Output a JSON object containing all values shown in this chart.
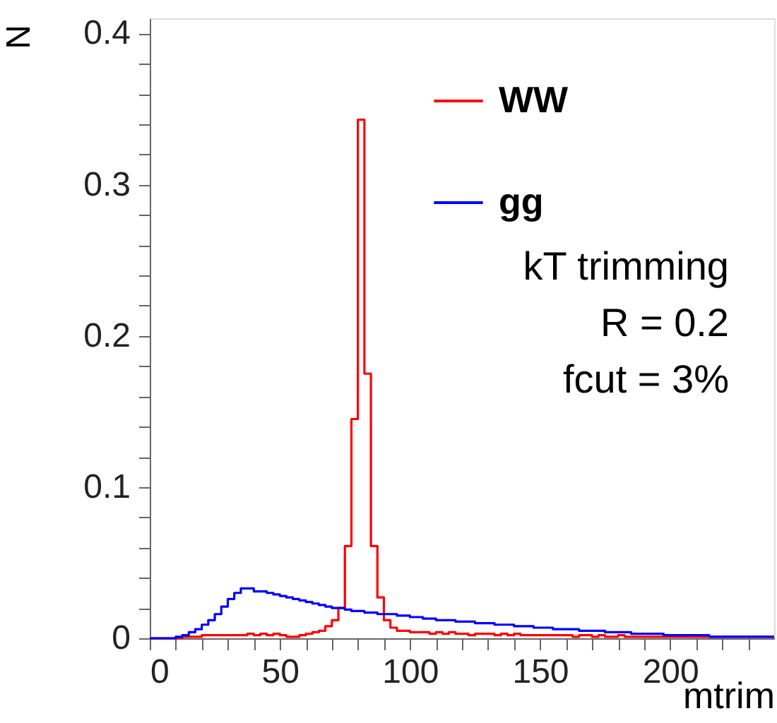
{
  "chart_data": {
    "type": "histogram",
    "xlabel": "mtrim",
    "ylabel": "N",
    "bins": [
      0,
      2.5,
      5,
      7.5,
      10,
      12.5,
      15,
      17.5,
      20,
      22.5,
      25,
      27.5,
      30,
      32.5,
      35,
      37.5,
      40,
      42.5,
      45,
      47.5,
      50,
      52.5,
      55,
      57.5,
      60,
      62.5,
      65,
      67.5,
      70,
      72.5,
      75,
      77.5,
      80,
      82.5,
      85,
      87.5,
      90,
      92.5,
      95,
      97.5,
      100,
      102.5,
      105,
      107.5,
      110,
      112.5,
      115,
      117.5,
      120,
      122.5,
      125,
      127.5,
      130,
      132.5,
      135,
      137.5,
      140,
      142.5,
      145,
      147.5,
      150,
      152.5,
      155,
      157.5,
      160,
      162.5,
      165,
      167.5,
      170,
      172.5,
      175,
      177.5,
      180,
      182.5,
      185,
      187.5,
      190,
      192.5,
      195,
      197.5,
      200,
      202.5,
      205,
      207.5,
      210,
      212.5,
      215,
      217.5,
      220,
      222.5,
      225,
      227.5,
      230,
      232.5,
      235,
      237.5,
      240
    ],
    "series": [
      {
        "name": "WW",
        "color": "#ff0000",
        "values": [
          0,
          0,
          0,
          0,
          0,
          0.001,
          0.001,
          0.001,
          0.002,
          0.002,
          0.002,
          0.002,
          0.002,
          0.002,
          0.002,
          0.003,
          0.002,
          0.003,
          0.002,
          0.003,
          0.002,
          0.001,
          0.001,
          0.002,
          0.003,
          0.004,
          0.005,
          0.008,
          0.012,
          0.02,
          0.061,
          0.145,
          0.343,
          0.175,
          0.061,
          0.027,
          0.012,
          0.007,
          0.005,
          0.005,
          0.004,
          0.004,
          0.004,
          0.003,
          0.004,
          0.003,
          0.004,
          0.003,
          0.003,
          0.002,
          0.003,
          0.003,
          0.003,
          0.002,
          0.003,
          0.002,
          0.003,
          0.002,
          0.002,
          0.002,
          0.002,
          0.002,
          0.002,
          0.002,
          0.002,
          0.001,
          0.002,
          0.002,
          0.001,
          0.002,
          0.001,
          0.001,
          0.002,
          0.001,
          0.001,
          0.001,
          0.001,
          0.001,
          0.001,
          0.001,
          0.001,
          0.001,
          0.001,
          0.001,
          0.001,
          0.001,
          0.001,
          0.001,
          0.001,
          0.001,
          0.001,
          0.001,
          0.001,
          0.001,
          0.001,
          0.001
        ]
      },
      {
        "name": "gg",
        "color": "#0000ff",
        "values": [
          0,
          0,
          0,
          0,
          0.001,
          0.002,
          0.004,
          0.006,
          0.009,
          0.012,
          0.016,
          0.021,
          0.026,
          0.03,
          0.033,
          0.033,
          0.031,
          0.031,
          0.03,
          0.029,
          0.028,
          0.027,
          0.026,
          0.025,
          0.024,
          0.023,
          0.022,
          0.021,
          0.02,
          0.02,
          0.019,
          0.018,
          0.018,
          0.017,
          0.017,
          0.016,
          0.016,
          0.016,
          0.015,
          0.015,
          0.014,
          0.014,
          0.013,
          0.013,
          0.012,
          0.012,
          0.012,
          0.011,
          0.011,
          0.011,
          0.01,
          0.01,
          0.01,
          0.009,
          0.009,
          0.009,
          0.008,
          0.008,
          0.008,
          0.007,
          0.007,
          0.007,
          0.006,
          0.006,
          0.006,
          0.006,
          0.005,
          0.005,
          0.005,
          0.005,
          0.004,
          0.004,
          0.004,
          0.004,
          0.003,
          0.003,
          0.003,
          0.003,
          0.003,
          0.002,
          0.002,
          0.002,
          0.002,
          0.002,
          0.002,
          0.002,
          0.001,
          0.001,
          0.001,
          0.001,
          0.001,
          0.001,
          0.001,
          0.001,
          0.001,
          0.001
        ]
      }
    ],
    "xlim": [
      0,
      240
    ],
    "xticks": [
      0,
      {
        "value": 10,
        "label": null
      },
      {
        "value": 20,
        "label": null
      },
      {
        "value": 30,
        "label": null
      },
      {
        "value": 40,
        "label": null
      },
      50,
      {
        "value": 60,
        "label": null
      },
      {
        "value": 70,
        "label": null
      },
      {
        "value": 80,
        "label": null
      },
      {
        "value": 90,
        "label": null
      },
      100,
      {
        "value": 110,
        "label": null
      },
      {
        "value": 120,
        "label": null
      },
      {
        "value": 130,
        "label": null
      },
      {
        "value": 140,
        "label": null
      },
      150,
      {
        "value": 160,
        "label": null
      },
      {
        "value": 170,
        "label": null
      },
      {
        "value": 180,
        "label": null
      },
      {
        "value": 190,
        "label": null
      },
      200,
      {
        "value": 210,
        "label": null
      },
      {
        "value": 220,
        "label": null
      },
      {
        "value": 230,
        "label": null
      }
    ],
    "ylim": [
      0,
      0.41
    ],
    "yticks": [
      0,
      {
        "value": 0.02,
        "label": null
      },
      {
        "value": 0.04,
        "label": null
      },
      {
        "value": 0.06,
        "label": null
      },
      {
        "value": 0.08,
        "label": null
      },
      0.1,
      {
        "value": 0.12,
        "label": null
      },
      {
        "value": 0.14,
        "label": null
      },
      {
        "value": 0.16,
        "label": null
      },
      {
        "value": 0.18,
        "label": null
      },
      0.2,
      {
        "value": 0.22,
        "label": null
      },
      {
        "value": 0.24,
        "label": null
      },
      {
        "value": 0.26,
        "label": null
      },
      {
        "value": 0.28,
        "label": null
      },
      0.3,
      {
        "value": 0.32,
        "label": null
      },
      {
        "value": 0.34,
        "label": null
      },
      {
        "value": 0.36,
        "label": null
      },
      {
        "value": 0.38,
        "label": null
      },
      0.4
    ],
    "annotations": [
      "kT trimming",
      "R = 0.2",
      "fcut = 3%"
    ],
    "legend": "top right",
    "grid": false,
    "line_style": "solid"
  }
}
